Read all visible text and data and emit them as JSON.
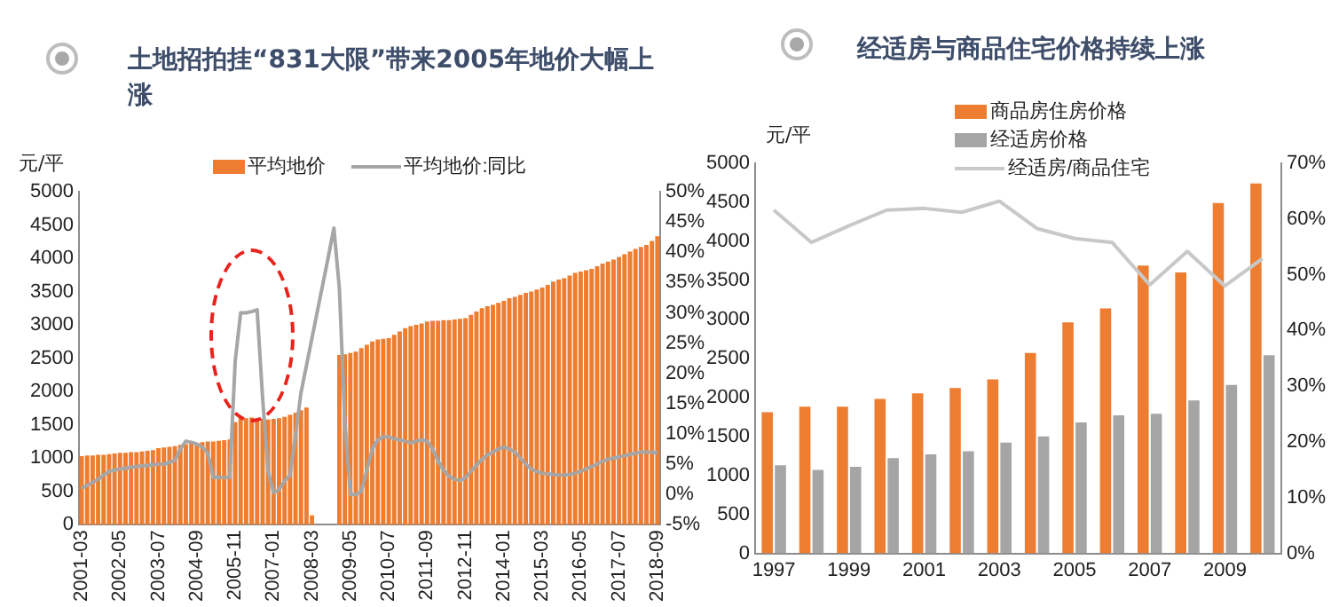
{
  "chart_data": [
    {
      "type": "bar",
      "title": "土地招拍挂“831大限”带来2005年地价大幅上涨",
      "ylabel": "元/平",
      "legend": "top",
      "categories": [
        "2001-03",
        null,
        null,
        null,
        null,
        null,
        null,
        "2002-05",
        null,
        null,
        null,
        null,
        null,
        null,
        "2003-07",
        null,
        null,
        null,
        null,
        null,
        null,
        "2004-09",
        null,
        null,
        null,
        null,
        null,
        null,
        "2005-11",
        null,
        null,
        null,
        null,
        null,
        null,
        "2007-01",
        null,
        null,
        null,
        null,
        null,
        null,
        "2008-03",
        null,
        null,
        null,
        null,
        null,
        null,
        "2009-05",
        null,
        null,
        null,
        null,
        null,
        null,
        "2010-07",
        null,
        null,
        null,
        null,
        null,
        null,
        "2011-09",
        null,
        null,
        null,
        null,
        null,
        null,
        "2012-11",
        null,
        null,
        null,
        null,
        null,
        null,
        "2014-01",
        null,
        null,
        null,
        null,
        null,
        null,
        "2015-03",
        null,
        null,
        null,
        null,
        null,
        null,
        "2016-05",
        null,
        null,
        null,
        null,
        null,
        null,
        "2017-07",
        null,
        null,
        null,
        null,
        null,
        null,
        "2018-09"
      ],
      "ylim": [
        0,
        5000
      ],
      "yticks": [
        0,
        500,
        1000,
        1500,
        2000,
        2500,
        3000,
        3500,
        4000,
        4500,
        5000
      ],
      "y2lim": [
        -5,
        50
      ],
      "y2ticks": [
        {
          "value": -5,
          "label": "-5%"
        },
        {
          "value": 0,
          "label": "0%"
        },
        {
          "value": 5,
          "label": "5%"
        },
        {
          "value": 10,
          "label": "10%"
        },
        {
          "value": 15,
          "label": "15%"
        },
        {
          "value": 20,
          "label": "20%"
        },
        {
          "value": 25,
          "label": "25%"
        },
        {
          "value": 30,
          "label": "30%"
        },
        {
          "value": 35,
          "label": "35%"
        },
        {
          "value": 40,
          "label": "40%"
        },
        {
          "value": 45,
          "label": "45%"
        },
        {
          "value": 50,
          "label": "50%"
        }
      ],
      "series": [
        {
          "name": "平均地价",
          "color": "#ed7d31",
          "values": [
            1030,
            1040,
            1040,
            1050,
            1050,
            1060,
            1070,
            1080,
            1080,
            1090,
            1090,
            1100,
            1110,
            1120,
            1150,
            1160,
            1170,
            1180,
            1200,
            1210,
            1220,
            1230,
            1240,
            1250,
            1250,
            1260,
            1270,
            1280,
            1540,
            1600,
            1600,
            1610,
            1600,
            1590,
            1580,
            1590,
            1600,
            1620,
            1650,
            1680,
            1720,
            1760,
            140,
            null,
            null,
            null,
            null,
            2550,
            2560,
            2580,
            2600,
            2650,
            2700,
            2750,
            2780,
            2790,
            2800,
            2850,
            2900,
            2950,
            2980,
            3000,
            3020,
            3050,
            3060,
            3060,
            3070,
            3070,
            3080,
            3090,
            3100,
            3150,
            3200,
            3250,
            3280,
            3300,
            3330,
            3360,
            3400,
            3420,
            3450,
            3480,
            3500,
            3530,
            3560,
            3600,
            3650,
            3680,
            3700,
            3740,
            3780,
            3800,
            3820,
            3840,
            3880,
            3920,
            3950,
            3980,
            4020,
            4060,
            4100,
            4140,
            4170,
            4200,
            4260,
            4330
          ]
        },
        {
          "name": "平均地价:同比",
          "type": "line",
          "axis": "y2",
          "color": "#a6a6a6",
          "values": [
            1,
            1.5,
            2,
            2.5,
            3.2,
            3.8,
            4,
            4.2,
            4.3,
            4.5,
            4.6,
            4.7,
            4.8,
            4.9,
            5,
            5,
            5.3,
            5.6,
            7.5,
            8.8,
            8.6,
            8.3,
            7.8,
            6.8,
            2.8,
            2.8,
            2.8,
            2.8,
            22,
            30,
            30,
            30.2,
            30.5,
            15.9,
            3.8,
            0.3,
            0.8,
            2.2,
            3.2,
            9.8,
            16.8,
            21.3,
            25.8,
            30.3,
            34.8,
            39.3,
            44,
            34,
            12,
            0,
            0,
            0.5,
            4,
            7.5,
            9,
            9.5,
            9.5,
            9.2,
            9,
            8.8,
            8.5,
            8.8,
            9,
            8.8,
            7.5,
            5.5,
            4,
            3,
            2.5,
            2.3,
            2.8,
            3.8,
            4.8,
            5.8,
            6.5,
            7,
            7.5,
            7.8,
            7.5,
            7,
            6,
            5,
            4.2,
            3.8,
            3.5,
            3.4,
            3.3,
            3.2,
            3.2,
            3.3,
            3.5,
            3.8,
            4.2,
            4.6,
            5,
            5.5,
            5.8,
            6,
            6.2,
            6.4,
            6.6,
            6.8,
            7,
            7,
            7,
            6.8
          ]
        }
      ]
    },
    {
      "type": "bar",
      "title": "经适房与商品住宅价格持续上涨",
      "ylabel": "元/平",
      "legend": "top right",
      "categories": [
        "1997",
        null,
        "1999",
        null,
        "2001",
        null,
        "2003",
        null,
        "2005",
        null,
        "2007",
        null,
        "2009",
        null
      ],
      "ylim": [
        0,
        5000
      ],
      "yticks": [
        0,
        500,
        1000,
        1500,
        2000,
        2500,
        3000,
        3500,
        4000,
        4500,
        5000
      ],
      "y2lim": [
        0,
        70
      ],
      "y2ticks": [
        {
          "value": 0,
          "label": "0%"
        },
        {
          "value": 10,
          "label": "10%"
        },
        {
          "value": 20,
          "label": "20%"
        },
        {
          "value": 30,
          "label": "30%"
        },
        {
          "value": 40,
          "label": "40%"
        },
        {
          "value": 50,
          "label": "50%"
        },
        {
          "value": 60,
          "label": "60%"
        },
        {
          "value": 70,
          "label": "70%"
        }
      ],
      "series": [
        {
          "name": "商品房住房价格",
          "color": "#ed7d31",
          "values": [
            1810,
            1880,
            1880,
            1980,
            2050,
            2120,
            2230,
            2570,
            2960,
            3140,
            3690,
            3600,
            4490,
            4740
          ]
        },
        {
          "name": "经适房价格",
          "color": "#a5a5a5",
          "values": [
            1130,
            1070,
            1110,
            1220,
            1270,
            1310,
            1420,
            1500,
            1680,
            1770,
            1790,
            1960,
            2160,
            2540
          ]
        },
        {
          "name": "经适房/商品住宅",
          "type": "line",
          "axis": "y2",
          "color": "#c8c8c8",
          "values": [
            61.6,
            55.8,
            58.8,
            61.6,
            61.9,
            61.2,
            63.2,
            58.3,
            56.5,
            55.8,
            48.2,
            54.2,
            48,
            52.9
          ]
        }
      ]
    }
  ]
}
